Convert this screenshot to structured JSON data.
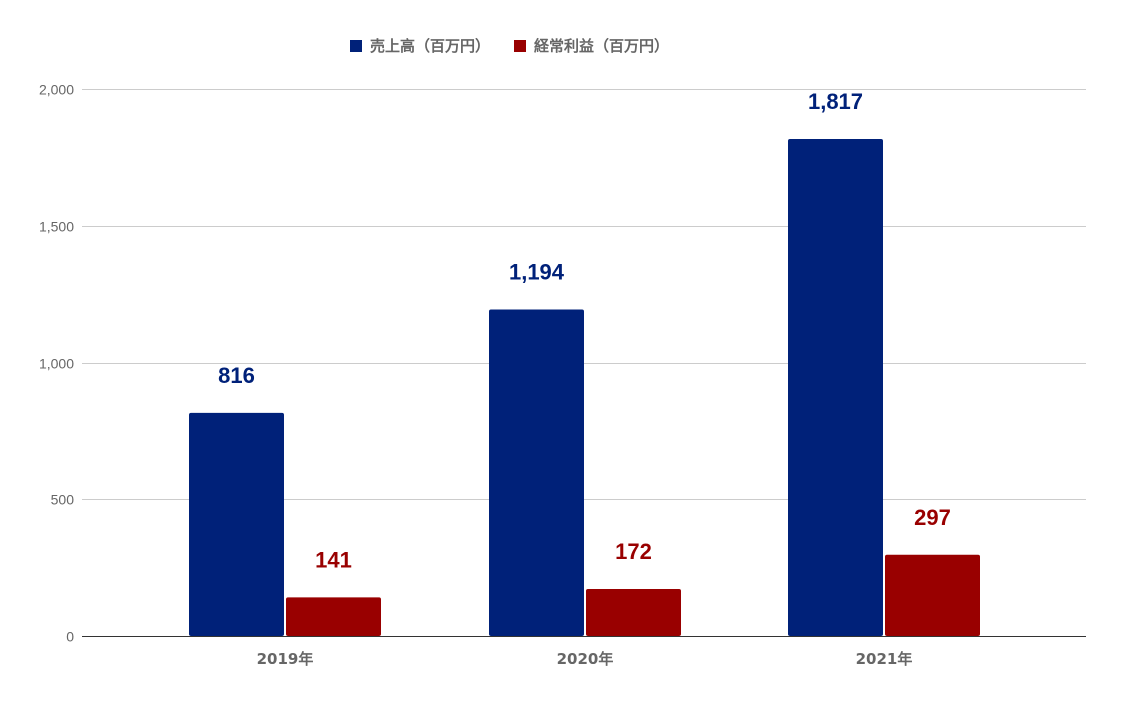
{
  "chart_data": {
    "type": "bar",
    "categories": [
      "2019年",
      "2020年",
      "2021年"
    ],
    "series": [
      {
        "name": "売上高（百万円）",
        "values": [
          816,
          1194,
          1817
        ],
        "color": "#002179"
      },
      {
        "name": "経常利益（百万円）",
        "values": [
          141,
          172,
          297
        ],
        "color": "#990000"
      }
    ],
    "data_labels": [
      [
        "816",
        "1,194",
        "1,817"
      ],
      [
        "141",
        "172",
        "297"
      ]
    ],
    "y_ticks": [
      0,
      500,
      1000,
      1500,
      2000
    ],
    "y_tick_labels": [
      "0",
      "500",
      "1,000",
      "1,500",
      "2,000"
    ],
    "ylim": [
      0,
      2000
    ],
    "grid": true,
    "legend_position": "top"
  }
}
